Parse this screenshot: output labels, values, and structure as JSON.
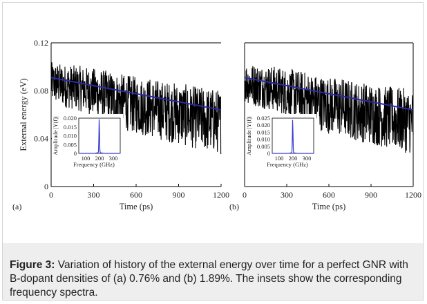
{
  "figure": {
    "caption_label": "Figure 3:",
    "caption_text": "Variation of history of the external energy over time for a perfect GNR with B-dopant densities of (a) 0.76% and (b) 1.89%. The insets show the corresponding frequency spectra."
  },
  "colors": {
    "signal": "#000000",
    "trend": "#2a2aa8",
    "peak": "#3b3bd0",
    "caption_bg": "#eeeeee"
  },
  "chart_data": [
    {
      "type": "line",
      "panel_label": "(a)",
      "xlabel": "Time (ps)",
      "ylabel": "External energy (eV)",
      "xlim": [
        0,
        1200
      ],
      "ylim": [
        0,
        0.12
      ],
      "xticks": [
        "0",
        "300",
        "600",
        "900",
        "1200"
      ],
      "yticks": [
        "0",
        "0.04",
        "0.08",
        "0.12"
      ],
      "series": [
        {
          "x": [
            0,
            100,
            200,
            300,
            400,
            500,
            600,
            700,
            800,
            900,
            1000,
            1100,
            1200
          ],
          "y_center": [
            0.087,
            0.084,
            0.082,
            0.079,
            0.075,
            0.071,
            0.068,
            0.066,
            0.063,
            0.061,
            0.058,
            0.056,
            0.054
          ],
          "y_amplitude": [
            0.017,
            0.018,
            0.019,
            0.02,
            0.022,
            0.023,
            0.024,
            0.025,
            0.025,
            0.026,
            0.026,
            0.027,
            0.027
          ]
        },
        {
          "x": [
            0,
            1200
          ],
          "y": [
            0.091,
            0.064
          ]
        }
      ],
      "inset": {
        "type": "line",
        "xlabel": "Frequency (GHz)",
        "ylabel": "Amplitude |Y(f)|",
        "xticks": [
          "100",
          "200",
          "300"
        ],
        "yticks": [
          "0",
          "0.005",
          "0.010",
          "0.015",
          "0.020"
        ],
        "xlim": [
          50,
          350
        ],
        "ylim": [
          0,
          0.02
        ],
        "peak_frequency": 198,
        "peak_amplitude": 0.0195
      }
    },
    {
      "type": "line",
      "panel_label": "(b)",
      "xlabel": "Time (ps)",
      "ylabel": "",
      "xlim": [
        0,
        1200
      ],
      "ylim": [
        0,
        0.12
      ],
      "xticks": [
        "0",
        "300",
        "600",
        "900",
        "1200"
      ],
      "yticks": [],
      "series": [
        {
          "x": [
            0,
            100,
            200,
            300,
            400,
            500,
            600,
            700,
            800,
            900,
            1000,
            1100,
            1200
          ],
          "y_center": [
            0.087,
            0.084,
            0.082,
            0.079,
            0.075,
            0.071,
            0.068,
            0.066,
            0.063,
            0.061,
            0.058,
            0.056,
            0.054
          ],
          "y_amplitude": [
            0.017,
            0.018,
            0.019,
            0.02,
            0.022,
            0.023,
            0.024,
            0.025,
            0.025,
            0.026,
            0.026,
            0.027,
            0.027
          ]
        },
        {
          "x": [
            0,
            1200
          ],
          "y": [
            0.091,
            0.064
          ]
        }
      ],
      "inset": {
        "type": "line",
        "xlabel": "Frequency (GHz)",
        "ylabel": "Amplitude |Y(f)|",
        "xticks": [
          "100",
          "200",
          "300"
        ],
        "yticks": [
          "0",
          "0.005",
          "0.010",
          "0.015",
          "0.020",
          "0.025"
        ],
        "xlim": [
          50,
          350
        ],
        "ylim": [
          0,
          0.025
        ],
        "peak_frequency": 198,
        "peak_amplitude": 0.024
      }
    }
  ]
}
